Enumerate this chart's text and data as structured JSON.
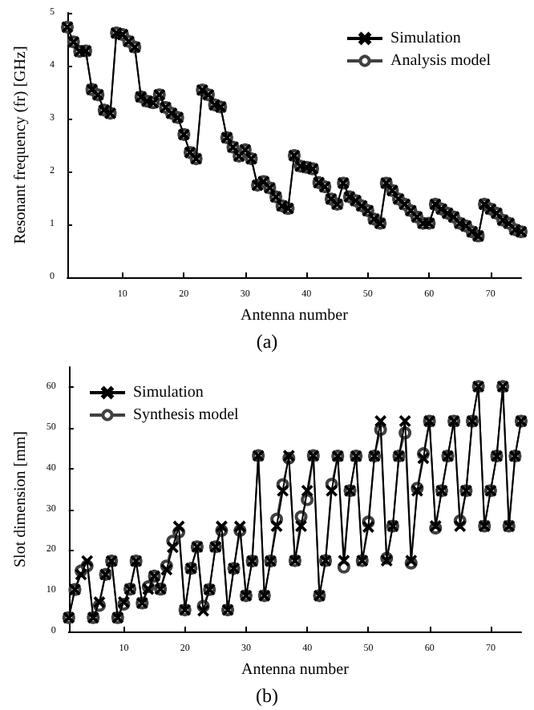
{
  "chart_data": [
    {
      "type": "line",
      "xlabel": "Antenna number",
      "ylabel": "Resonant frequency (fr) [GHz]",
      "annotations": [
        "(a)"
      ],
      "x": [
        1,
        2,
        3,
        4,
        5,
        6,
        7,
        8,
        9,
        10,
        11,
        12,
        13,
        14,
        15,
        16,
        17,
        18,
        19,
        20,
        21,
        22,
        23,
        24,
        25,
        26,
        27,
        28,
        29,
        30,
        31,
        32,
        33,
        34,
        35,
        36,
        37,
        38,
        39,
        40,
        41,
        42,
        43,
        44,
        45,
        46,
        47,
        48,
        49,
        50,
        51,
        52,
        53,
        54,
        55,
        56,
        57,
        58,
        59,
        60,
        61,
        62,
        63,
        64,
        65,
        66,
        67,
        68,
        69,
        70,
        71,
        72,
        73,
        74,
        75
      ],
      "xlim": [
        1,
        75
      ],
      "xticks": [
        10,
        20,
        30,
        40,
        50,
        60,
        70
      ],
      "ylim": [
        0,
        5
      ],
      "yticks": [
        0,
        1,
        2,
        3,
        4,
        5
      ],
      "grid": false,
      "legend": "top right",
      "series": [
        {
          "name": "Simulation",
          "color": "#000000",
          "marker": "cross",
          "values": [
            4.73,
            4.45,
            4.27,
            4.28,
            3.55,
            3.45,
            3.16,
            3.1,
            4.62,
            4.59,
            4.46,
            4.35,
            3.41,
            3.33,
            3.3,
            3.45,
            3.21,
            3.1,
            3.02,
            2.7,
            2.36,
            2.24,
            3.54,
            3.45,
            3.26,
            3.22,
            2.64,
            2.46,
            2.29,
            2.41,
            2.24,
            1.74,
            1.81,
            1.69,
            1.52,
            1.35,
            1.3,
            2.3,
            2.1,
            2.08,
            2.05,
            1.79,
            1.71,
            1.48,
            1.38,
            1.78,
            1.52,
            1.45,
            1.35,
            1.26,
            1.1,
            1.02,
            1.78,
            1.64,
            1.48,
            1.38,
            1.26,
            1.14,
            1.02,
            1.02,
            1.38,
            1.29,
            1.21,
            1.14,
            1.02,
            0.97,
            0.86,
            0.78,
            1.38,
            1.29,
            1.21,
            1.08,
            1.02,
            0.9,
            0.86
          ]
        },
        {
          "name": "Analysis model",
          "color": "#404040",
          "marker": "circle",
          "values": [
            4.73,
            4.45,
            4.27,
            4.28,
            3.55,
            3.45,
            3.16,
            3.1,
            4.62,
            4.59,
            4.46,
            4.35,
            3.41,
            3.33,
            3.3,
            3.45,
            3.21,
            3.1,
            3.02,
            2.7,
            2.36,
            2.24,
            3.54,
            3.45,
            3.26,
            3.22,
            2.64,
            2.46,
            2.29,
            2.41,
            2.24,
            1.74,
            1.81,
            1.69,
            1.52,
            1.35,
            1.3,
            2.3,
            2.1,
            2.08,
            2.05,
            1.79,
            1.71,
            1.48,
            1.38,
            1.78,
            1.52,
            1.45,
            1.35,
            1.26,
            1.1,
            1.02,
            1.78,
            1.64,
            1.48,
            1.38,
            1.26,
            1.14,
            1.02,
            1.02,
            1.38,
            1.29,
            1.21,
            1.14,
            1.02,
            0.97,
            0.86,
            0.78,
            1.38,
            1.29,
            1.21,
            1.08,
            1.02,
            0.9,
            0.86
          ]
        }
      ]
    },
    {
      "type": "line",
      "xlabel": "Antenna number",
      "ylabel": "Slot dimension [mm]",
      "annotations": [
        "(b)"
      ],
      "x": [
        1,
        2,
        3,
        4,
        5,
        6,
        7,
        8,
        9,
        10,
        11,
        12,
        13,
        14,
        15,
        16,
        17,
        18,
        19,
        20,
        21,
        22,
        23,
        24,
        25,
        26,
        27,
        28,
        29,
        30,
        31,
        32,
        33,
        34,
        35,
        36,
        37,
        38,
        39,
        40,
        41,
        42,
        43,
        44,
        45,
        46,
        47,
        48,
        49,
        50,
        51,
        52,
        53,
        54,
        55,
        56,
        57,
        58,
        59,
        60,
        61,
        62,
        63,
        64,
        65,
        66,
        67,
        68,
        69,
        70,
        71,
        72,
        73,
        74,
        75
      ],
      "xlim": [
        1,
        75
      ],
      "xticks": [
        10,
        20,
        30,
        40,
        50,
        60,
        70
      ],
      "ylim": [
        0,
        65
      ],
      "yticks": [
        0,
        10,
        20,
        30,
        40,
        50,
        60
      ],
      "grid": false,
      "legend": "top left",
      "series": [
        {
          "name": "Simulation",
          "color": "#000000",
          "marker": "cross",
          "values": [
            3.4,
            10.3,
            14,
            17.3,
            3.4,
            7.2,
            14,
            17.3,
            3.4,
            7.2,
            10.4,
            17.3,
            7,
            10.4,
            13.6,
            10.4,
            15.2,
            20.7,
            25.8,
            5.3,
            15.5,
            20.8,
            5.1,
            10.3,
            20.8,
            25.8,
            5.3,
            15.5,
            25.8,
            8.8,
            17.3,
            43.2,
            8.8,
            17.3,
            25.9,
            34.6,
            43.2,
            17.4,
            25.9,
            34.6,
            43.2,
            8.8,
            17.4,
            34.6,
            43.1,
            17.4,
            34.6,
            43.1,
            17.4,
            25.7,
            43.1,
            51.7,
            17.4,
            25.9,
            43.1,
            51.7,
            17.4,
            34.6,
            42.6,
            51.7,
            25.9,
            34.6,
            43.1,
            51.7,
            25.9,
            34.6,
            51.7,
            60.2,
            25.9,
            34.6,
            43.1,
            60.2,
            25.9,
            43.1,
            51.7
          ]
        },
        {
          "name": "Synthesis model",
          "color": "#404040",
          "marker": "circle",
          "values": [
            3.4,
            10.3,
            14.9,
            16.1,
            3.4,
            6.4,
            14,
            17.3,
            3.4,
            6.7,
            10.4,
            17.3,
            7,
            11,
            13.6,
            10.4,
            16.1,
            22.2,
            24.4,
            5.3,
            15.5,
            20.8,
            6.2,
            10.3,
            20.8,
            24.8,
            5.3,
            15.5,
            24.8,
            8.8,
            17.3,
            43.2,
            8.8,
            17.3,
            27.6,
            36.1,
            42.6,
            17.4,
            28.2,
            32.4,
            43.2,
            8.8,
            17.4,
            36.2,
            43.1,
            15.8,
            34.6,
            43.1,
            17.4,
            26.9,
            43.1,
            49.6,
            18,
            25.9,
            43.1,
            48.8,
            16.8,
            35.2,
            43.7,
            51.7,
            25.4,
            34.6,
            43.1,
            51.7,
            27.2,
            34.6,
            51.7,
            60.2,
            25.9,
            34.6,
            43.1,
            60.2,
            25.9,
            43.1,
            51.7
          ]
        }
      ]
    }
  ]
}
